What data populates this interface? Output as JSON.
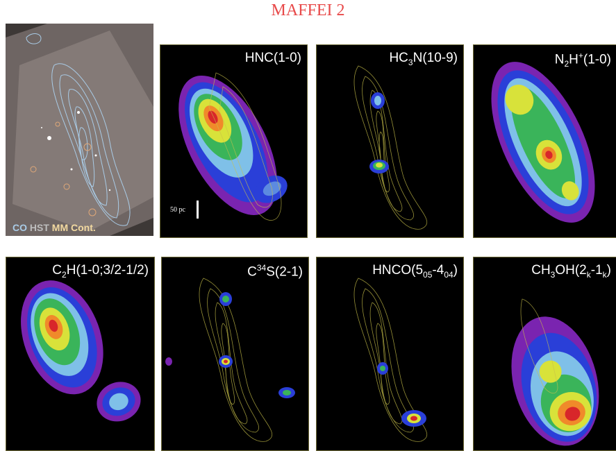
{
  "figure_title": "MAFFEI 2",
  "hst_panel": {
    "legend_co": "CO",
    "legend_hst": "HST",
    "legend_mm": "MM Cont."
  },
  "panels": [
    {
      "label_html": "HNC(1-0)"
    },
    {
      "label_html": "HC<sub>3</sub>N(10-9)"
    },
    {
      "label_html": "N<sub>2</sub>H<sup>+</sup>(1-0)"
    },
    {
      "label_html": "C<sub>2</sub>H(1-0;3/2-1/2)"
    },
    {
      "label_html": "C<sup>34</sup>S(2-1)"
    },
    {
      "label_html": "HNCO(5<sub>05</sub>-4<sub>04</sub>)"
    },
    {
      "label_html": "CH<sub>3</sub>OH(2<sub>k</sub>-1<sub>k</sub>)"
    }
  ],
  "scale_label": "50 pc",
  "colors": {
    "title": "#e84a4a",
    "contour": "#c9c14a",
    "co": "#a9cbe6"
  }
}
